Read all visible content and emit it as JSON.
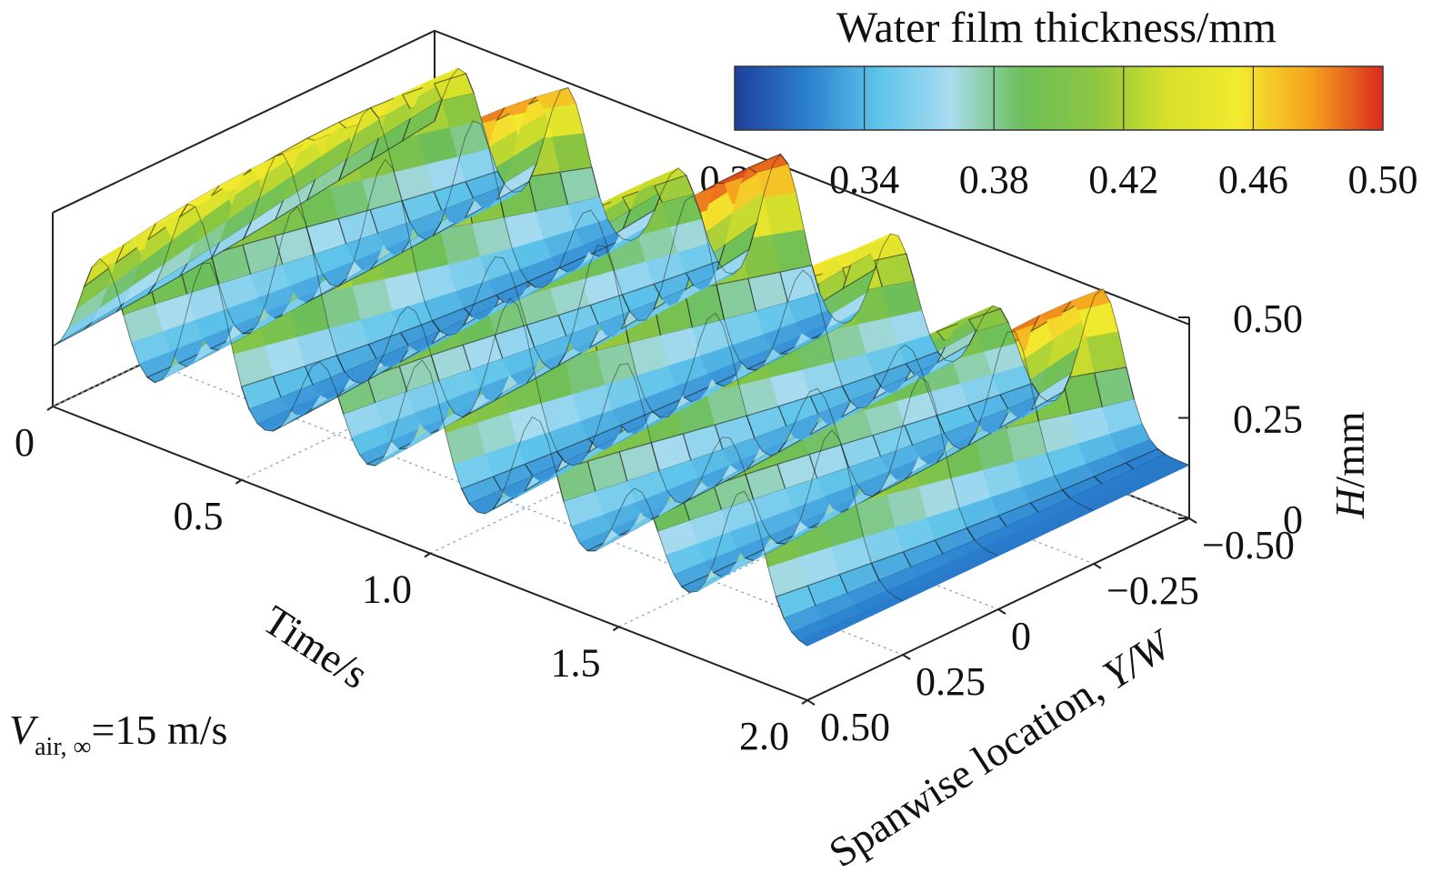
{
  "chart_data": {
    "type": "surface",
    "colorbar": {
      "title": "Water film thickness/mm",
      "ticks": [
        "0.30",
        "0.34",
        "0.38",
        "0.42",
        "0.46",
        "0.50"
      ],
      "range": [
        0.3,
        0.5
      ],
      "colors": [
        "#1f3f9a",
        "#2a7fce",
        "#5ec4ea",
        "#a9dcef",
        "#6cbf5a",
        "#8cc63f",
        "#d6e02a",
        "#f3ea2e",
        "#f7a21e",
        "#d92a1e"
      ]
    },
    "x_axis": {
      "label": "Time/s",
      "ticks": [
        "0",
        "0.5",
        "1.0",
        "1.5",
        "2.0"
      ],
      "values": [
        0,
        0.5,
        1.0,
        1.5,
        2.0
      ],
      "range": [
        0,
        2.0
      ]
    },
    "y_axis": {
      "label_main": "Spanwise location, ",
      "label_italic": "Y/W",
      "ticks": [
        "−0.50",
        "−0.25",
        "0",
        "0.25",
        "0.50"
      ],
      "values": [
        -0.5,
        -0.25,
        0,
        0.25,
        0.5
      ],
      "range": [
        -0.5,
        0.5
      ]
    },
    "z_axis": {
      "label_italic": "H",
      "label_unit": "/mm",
      "ticks": [
        "0",
        "0.25",
        "0.50"
      ],
      "values": [
        0,
        0.25,
        0.5
      ],
      "range": [
        0,
        0.5
      ]
    },
    "waves": {
      "crest_times": [
        0.1,
        0.38,
        0.68,
        0.95,
        1.25,
        1.52,
        1.8
      ],
      "crest_peaks": [
        0.46,
        0.5,
        0.44,
        0.5,
        0.47,
        0.43,
        0.49
      ]
    },
    "annotation": {
      "prefix": "V",
      "subscript": "air, ∞",
      "suffix": "=15 m/s"
    }
  }
}
